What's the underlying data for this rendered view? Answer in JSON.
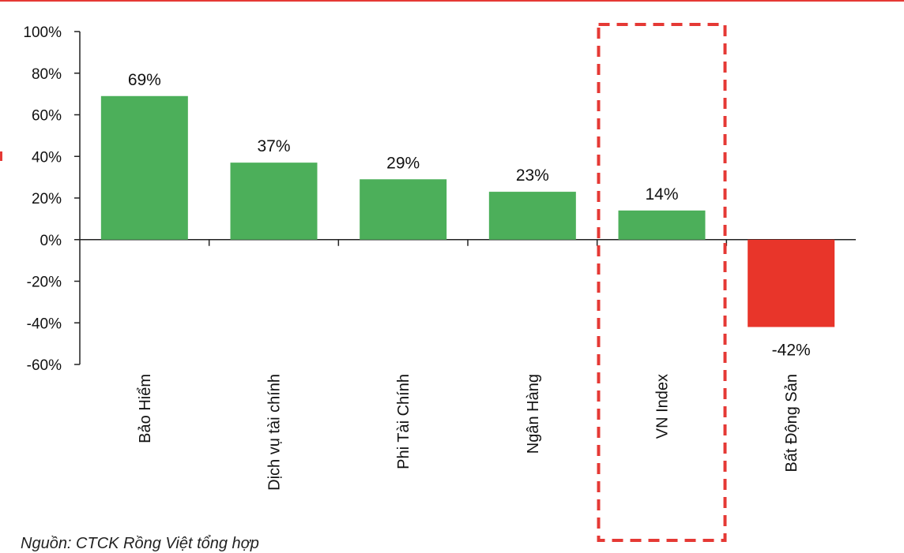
{
  "chart_data": {
    "type": "bar",
    "categories": [
      "Bảo Hiểm",
      "Dịch vụ tài chính",
      "Phi Tài Chính",
      "Ngân Hàng",
      "VN Index",
      "Bất Động Sản"
    ],
    "values": [
      69,
      37,
      29,
      23,
      14,
      -42
    ],
    "data_labels": [
      "69%",
      "37%",
      "29%",
      "23%",
      "14%",
      "-42%"
    ],
    "yticks": [
      "100%",
      "80%",
      "60%",
      "40%",
      "20%",
      "0%",
      "-20%",
      "-40%",
      "-60%"
    ],
    "ylim": [
      -60,
      100
    ],
    "ytick_step": 20,
    "title": "",
    "xlabel": "",
    "ylabel": "",
    "grid": false,
    "colors": {
      "positive": "#4caf5a",
      "negative": "#e8352a",
      "highlight_box": "#e53935",
      "axis": "#222222"
    },
    "highlighted_category": "VN Index"
  },
  "footer": {
    "source": "Nguồn: CTCK Rồng Việt tổng hợp"
  }
}
